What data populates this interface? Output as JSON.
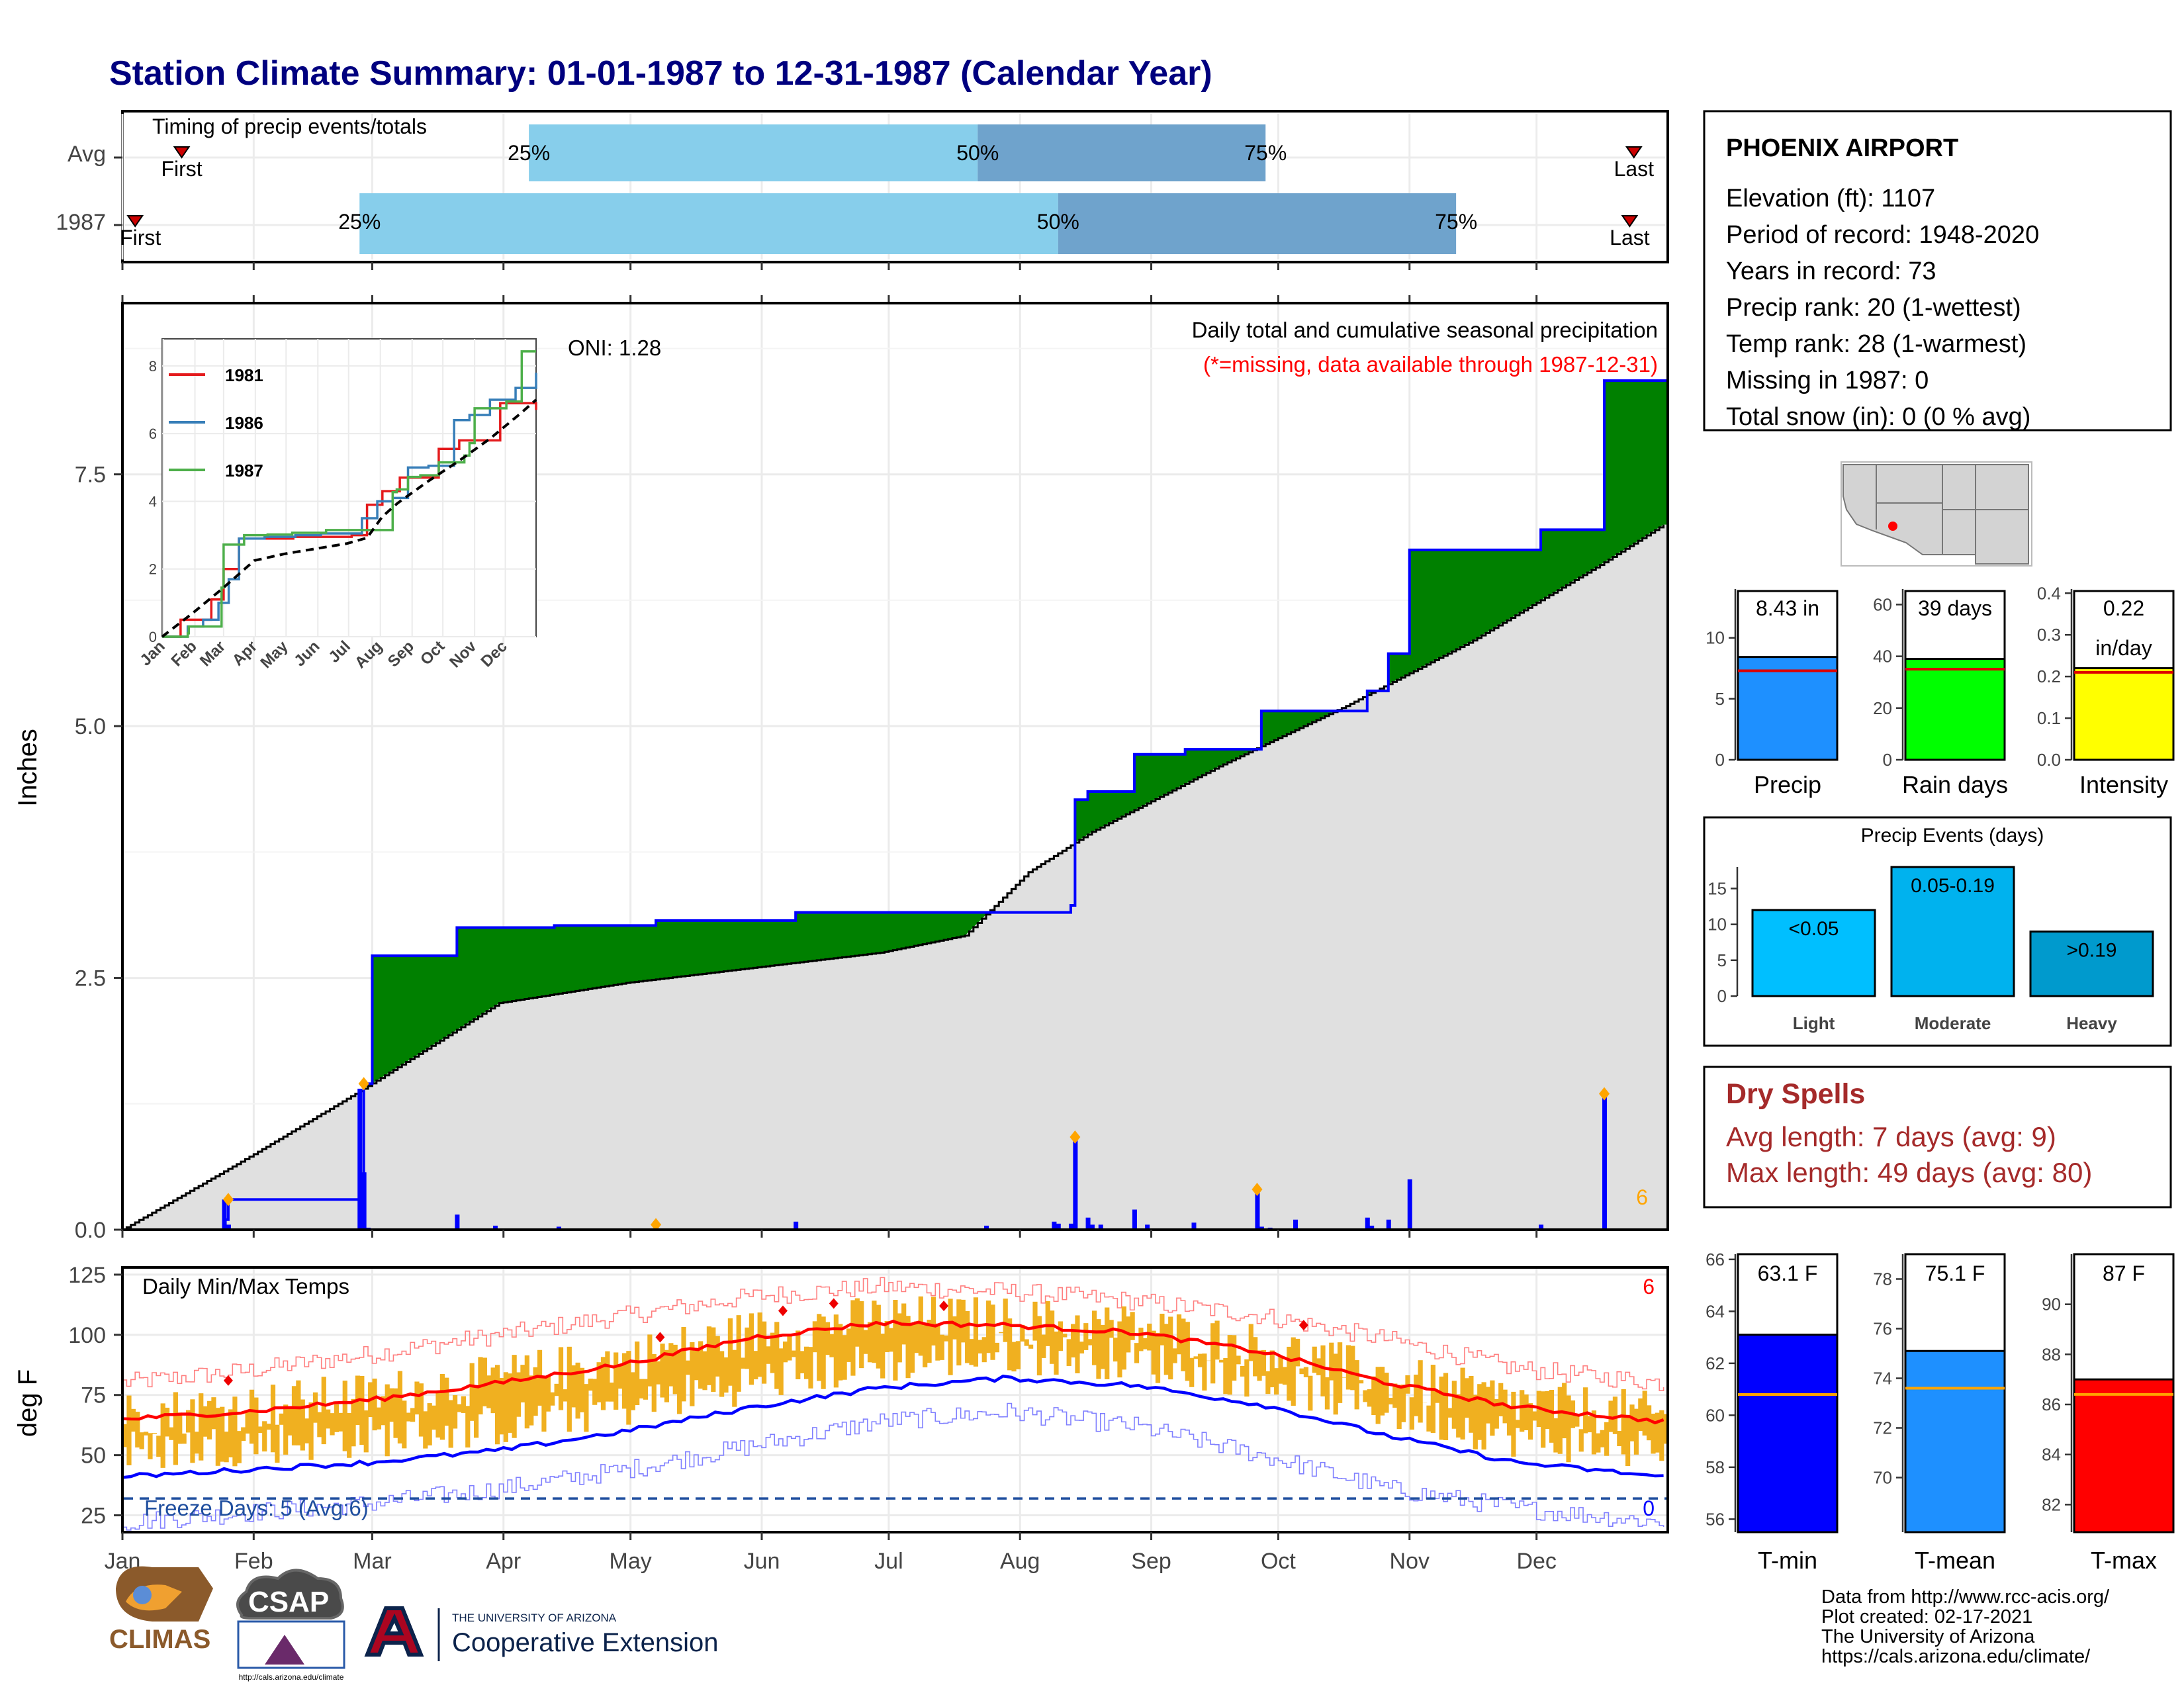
{
  "title": "Station Climate Summary: 01-01-1987 to 12-31-1987 (Calendar Year)",
  "colors": {
    "title": "#00007f",
    "light_blue": "#87ceeb",
    "mid_blue": "#6fa3cc",
    "wet_green": "#008000",
    "dry_brown": "#8b5a00",
    "cum_gray": "#e0e0e0",
    "daily_blue": "#0000ff",
    "temp_bar": "#f0b020",
    "tmax_red": "#ff0000",
    "tmin_blue": "#0000ff",
    "dry_spells_red": "#a52a2a"
  },
  "station": {
    "name": "PHOENIX AIRPORT",
    "elevation": "Elevation (ft): 1107",
    "period": "Period of record: 1948-2020",
    "years": "Years in record: 73",
    "precip_rank": "Precip rank: 20 (1-wettest)",
    "temp_rank": "Temp rank: 28 (1-warmest)",
    "missing": "Missing in 1987: 0",
    "snow": "Total snow (in): 0 (0 % avg)"
  },
  "timing": {
    "title": "Timing of precip events/totals",
    "months": [
      "Jan",
      "Feb",
      "Mar",
      "Apr",
      "May",
      "Jun",
      "Jul",
      "Aug",
      "Sep",
      "Oct",
      "Nov",
      "Dec"
    ],
    "rows": [
      {
        "label": "Avg",
        "first": 15,
        "p25": 97,
        "p50": 203,
        "p75": 271,
        "last": 358,
        "first_label": "First",
        "last_label": "Last",
        "p25_label": "25%",
        "p50_label": "50%",
        "p75_label": "75%"
      },
      {
        "label": "1987",
        "first": 4,
        "p25": 57,
        "p50": 222,
        "p75": 316,
        "last": 357,
        "first_label": "First",
        "last_label": "Last",
        "p25_label": "25%",
        "p50_label": "50%",
        "p75_label": "75%"
      }
    ]
  },
  "main_chart": {
    "ylabel": "Inches",
    "yticks": [
      "0.0",
      "2.5",
      "5.0",
      "7.5"
    ],
    "y_tick_values": [
      0,
      2.5,
      5.0,
      7.5
    ],
    "ylim": [
      0,
      9.2
    ],
    "annotation_title": "Daily total and cumulative seasonal precipitation",
    "annotation_missing": "(*=missing, data available through 1987-12-31)",
    "oni": "ONI: 1.28",
    "extreme_count": "6"
  },
  "inset": {
    "xticks": [
      "Jan",
      "Feb",
      "Mar",
      "Apr",
      "May",
      "Jun",
      "Jul",
      "Aug",
      "Sep",
      "Oct",
      "Nov",
      "Dec"
    ],
    "yticks": [
      "0",
      "2",
      "4",
      "6",
      "8"
    ],
    "legend": [
      {
        "name": "1981",
        "color": "#e41a1c"
      },
      {
        "name": "1986",
        "color": "#377eb8"
      },
      {
        "name": "1987",
        "color": "#4daf4a"
      }
    ]
  },
  "temp_chart": {
    "title": "Daily Min/Max Temps",
    "ylabel": "deg F",
    "yticks": [
      "25",
      "50",
      "75",
      "100",
      "125"
    ],
    "y_tick_values": [
      25,
      50,
      75,
      100,
      125
    ],
    "ylim": [
      18,
      128
    ],
    "freeze": "Freeze Days: 5 (Avg:6)",
    "record_high_count": "6",
    "record_low_count": "0",
    "xticks": [
      "Jan",
      "Feb",
      "Mar",
      "Apr",
      "May",
      "Jun",
      "Jul",
      "Aug",
      "Sep",
      "Oct",
      "Nov",
      "Dec"
    ]
  },
  "precip_summary": [
    {
      "label": "Precip",
      "value_text": "8.43 in",
      "value": 8.43,
      "avg": 7.3,
      "ymax": 14,
      "yticks": [
        "0",
        "5",
        "10"
      ],
      "y_tick_values": [
        0,
        5,
        10
      ],
      "color": "#1e90ff"
    },
    {
      "label": "Rain days",
      "value_text": "39 days",
      "value": 39,
      "avg": 35,
      "ymax": 66,
      "yticks": [
        "0",
        "20",
        "40",
        "60"
      ],
      "y_tick_values": [
        0,
        20,
        40,
        60
      ],
      "color": "#00ff00"
    },
    {
      "label": "Intensity",
      "value_text": "0.22",
      "value_text2": "in/day",
      "value": 0.22,
      "avg": 0.21,
      "ymax": 0.41,
      "yticks": [
        "0.0",
        "0.1",
        "0.2",
        "0.3",
        "0.4"
      ],
      "y_tick_values": [
        0,
        0.1,
        0.2,
        0.3,
        0.4
      ],
      "color": "#ffff00"
    }
  ],
  "precip_events": {
    "title": "Precip Events (days)",
    "yticks": [
      "0",
      "5",
      "10",
      "15"
    ],
    "y_tick_values": [
      0,
      5,
      10,
      15
    ],
    "ymax": 18,
    "bars": [
      {
        "category": "Light",
        "label": "<0.05",
        "value": 12,
        "color": "#00bfff"
      },
      {
        "category": "Moderate",
        "label": "0.05-0.19",
        "value": 18,
        "color": "#00b2ee"
      },
      {
        "category": "Heavy",
        "label": ">0.19",
        "value": 9,
        "color": "#009acd"
      }
    ]
  },
  "dry_spells": {
    "title": "Dry Spells",
    "avg": "Avg length: 7 days (avg: 9)",
    "max": "Max length: 49 days (avg: 80)"
  },
  "temp_summary": [
    {
      "label": "T-min",
      "value_text": "63.1 F",
      "value": 63.1,
      "avg": 60.8,
      "ymin": 55.5,
      "ymax": 66.2,
      "yticks": [
        "56",
        "58",
        "60",
        "62",
        "64",
        "66"
      ],
      "y_tick_values": [
        56,
        58,
        60,
        62,
        64,
        66
      ],
      "color": "#0000ff"
    },
    {
      "label": "T-mean",
      "value_text": "75.1 F",
      "value": 75.1,
      "avg": 73.6,
      "ymin": 67.8,
      "ymax": 79.0,
      "yticks": [
        "70",
        "72",
        "74",
        "76",
        "78"
      ],
      "y_tick_values": [
        70,
        72,
        74,
        76,
        78
      ],
      "color": "#1e90ff"
    },
    {
      "label": "T-max",
      "value_text": "87 F",
      "value": 87.0,
      "avg": 86.4,
      "ymin": 80.9,
      "ymax": 92.0,
      "yticks": [
        "82",
        "84",
        "86",
        "88",
        "90"
      ],
      "y_tick_values": [
        82,
        84,
        86,
        88,
        90
      ],
      "color": "#ff0000"
    }
  ],
  "credits": {
    "line1": "Data from http://www.rcc-acis.org/",
    "line2": "Plot created: 02-17-2021",
    "line3": "The University of Arizona",
    "line4": "https://cals.arizona.edu/climate/"
  },
  "logos": {
    "climas": "CLIMAS",
    "csap": "CSAP",
    "csap_url": "http://cals.arizona.edu/climate",
    "ua_top": "THE UNIVERSITY OF ARIZONA",
    "ua_bottom": "Cooperative Extension"
  },
  "chart_data": [
    {
      "type": "line",
      "title": "Daily total and cumulative seasonal precipitation",
      "ylabel": "Inches",
      "ylim": [
        0,
        9.2
      ],
      "series": [
        {
          "name": "1987",
          "x": [
            1,
            25,
            26,
            57,
            58,
            60,
            80,
            103,
            127,
            160,
            225,
            226,
            229,
            240,
            252,
            270,
            295,
            300,
            305,
            336,
            351,
            365
          ],
          "y": [
            0.0,
            0.1,
            0.3,
            0.3,
            1.45,
            2.72,
            3.0,
            3.02,
            3.07,
            3.15,
            3.22,
            4.27,
            4.35,
            4.72,
            4.77,
            5.15,
            5.35,
            5.72,
            6.75,
            6.95,
            8.43,
            8.43
          ]
        },
        {
          "name": "Average",
          "x": [
            1,
            30,
            58,
            90,
            120,
            150,
            180,
            200,
            215,
            230,
            260,
            290,
            320,
            350,
            365
          ],
          "y": [
            0.0,
            0.7,
            1.4,
            2.25,
            2.45,
            2.6,
            2.75,
            2.92,
            3.55,
            3.95,
            4.6,
            5.2,
            5.85,
            6.6,
            7.0
          ]
        }
      ],
      "daily_precip": {
        "x": [
          25,
          26,
          57,
          58,
          59,
          80,
          89,
          104,
          127,
          160,
          205,
          221,
          222,
          225,
          226,
          229,
          230,
          232,
          240,
          243,
          254,
          269,
          270,
          272,
          278,
          295,
          296,
          300,
          305,
          336,
          351
        ],
        "y": [
          0.3,
          0.05,
          1.4,
          0.57,
          0.02,
          0.15,
          0.04,
          0.03,
          0.05,
          0.08,
          0.04,
          0.08,
          0.06,
          0.06,
          0.92,
          0.12,
          0.05,
          0.05,
          0.2,
          0.05,
          0.07,
          0.4,
          0.03,
          0.02,
          0.1,
          0.12,
          0.04,
          0.1,
          0.5,
          0.05,
          1.35
        ]
      }
    },
    {
      "type": "line",
      "xlabel": "",
      "ylabel": "",
      "ylim": [
        0,
        8.8
      ],
      "series": [
        {
          "name": "1981",
          "x": [
            0,
            18,
            30,
            48,
            60,
            75,
            100,
            128,
            160,
            185,
            200,
            215,
            232,
            245,
            270,
            290,
            310,
            330,
            355,
            365
          ],
          "y": [
            0,
            0.5,
            0.5,
            1.1,
            2.0,
            2.9,
            2.9,
            2.95,
            2.95,
            3.0,
            3.9,
            4.3,
            4.7,
            4.7,
            5.55,
            5.8,
            5.8,
            6.9,
            6.9,
            6.7
          ]
        },
        {
          "name": "1986",
          "x": [
            0,
            25,
            40,
            55,
            65,
            75,
            100,
            130,
            155,
            180,
            195,
            210,
            225,
            240,
            260,
            285,
            300,
            320,
            345,
            365
          ],
          "y": [
            0,
            0.3,
            0.5,
            1.0,
            1.7,
            2.9,
            2.95,
            3.0,
            3.05,
            3.05,
            3.5,
            4.0,
            4.1,
            5.0,
            5.05,
            6.4,
            6.55,
            7.0,
            7.35,
            7.8
          ]
        },
        {
          "name": "1987",
          "x": [
            0,
            25,
            26,
            57,
            58,
            60,
            80,
            103,
            127,
            160,
            200,
            225,
            229,
            240,
            252,
            270,
            295,
            300,
            305,
            336,
            351,
            365
          ],
          "y": [
            0,
            0.1,
            0.3,
            0.3,
            1.45,
            2.72,
            3.0,
            3.02,
            3.07,
            3.15,
            3.15,
            4.27,
            4.35,
            4.72,
            4.77,
            5.15,
            5.35,
            5.72,
            6.75,
            6.95,
            8.43,
            8.43
          ]
        },
        {
          "name": "Average",
          "x": [
            0,
            30,
            58,
            90,
            120,
            150,
            180,
            200,
            215,
            230,
            260,
            290,
            320,
            350,
            365
          ],
          "y": [
            0,
            0.7,
            1.4,
            2.25,
            2.45,
            2.6,
            2.75,
            2.92,
            3.55,
            3.95,
            4.6,
            5.2,
            5.85,
            6.6,
            7.0
          ]
        }
      ]
    },
    {
      "type": "bar",
      "title": "Timing of precip events/totals",
      "categories": [
        "Avg",
        "1987"
      ],
      "series": [
        {
          "name": "First",
          "values": [
            15,
            4
          ]
        },
        {
          "name": "25%",
          "values": [
            97,
            57
          ]
        },
        {
          "name": "50%",
          "values": [
            203,
            222
          ]
        },
        {
          "name": "75%",
          "values": [
            271,
            316
          ]
        },
        {
          "name": "Last",
          "values": [
            358,
            357
          ]
        }
      ]
    },
    {
      "type": "line",
      "title": "Daily Min/Max Temps",
      "ylabel": "deg F",
      "ylim": [
        18,
        128
      ],
      "series": [
        {
          "name": "Avg max",
          "x": [
            1,
            30,
            60,
            90,
            120,
            150,
            180,
            210,
            240,
            270,
            300,
            330,
            365
          ],
          "y": [
            65,
            68,
            73,
            80,
            88,
            99,
            105,
            104,
            101,
            93,
            80,
            70,
            64
          ]
        },
        {
          "name": "Avg min",
          "x": [
            1,
            30,
            60,
            90,
            120,
            150,
            180,
            210,
            240,
            270,
            300,
            330,
            365
          ],
          "y": [
            41,
            44,
            47,
            52,
            60,
            70,
            78,
            82,
            79,
            71,
            58,
            47,
            41
          ]
        },
        {
          "name": "Record max",
          "x": [
            1,
            30,
            60,
            90,
            120,
            150,
            180,
            210,
            240,
            270,
            300,
            330,
            365
          ],
          "y": [
            80,
            85,
            92,
            100,
            108,
            116,
            120,
            118,
            114,
            108,
            98,
            86,
            80
          ]
        },
        {
          "name": "Record min",
          "x": [
            1,
            30,
            60,
            90,
            120,
            150,
            180,
            210,
            240,
            270,
            300,
            330,
            365
          ],
          "y": [
            22,
            26,
            30,
            36,
            44,
            54,
            64,
            68,
            62,
            50,
            36,
            28,
            22
          ]
        }
      ]
    },
    {
      "type": "bar",
      "categories": [
        "Precip",
        "Rain days",
        "Intensity"
      ],
      "values": [
        8.43,
        39,
        0.22
      ]
    },
    {
      "type": "bar",
      "title": "Precip Events (days)",
      "categories": [
        "Light",
        "Moderate",
        "Heavy"
      ],
      "values": [
        12,
        18,
        9
      ]
    },
    {
      "type": "bar",
      "categories": [
        "T-min",
        "T-mean",
        "T-max"
      ],
      "values": [
        63.1,
        75.1,
        87
      ]
    }
  ]
}
